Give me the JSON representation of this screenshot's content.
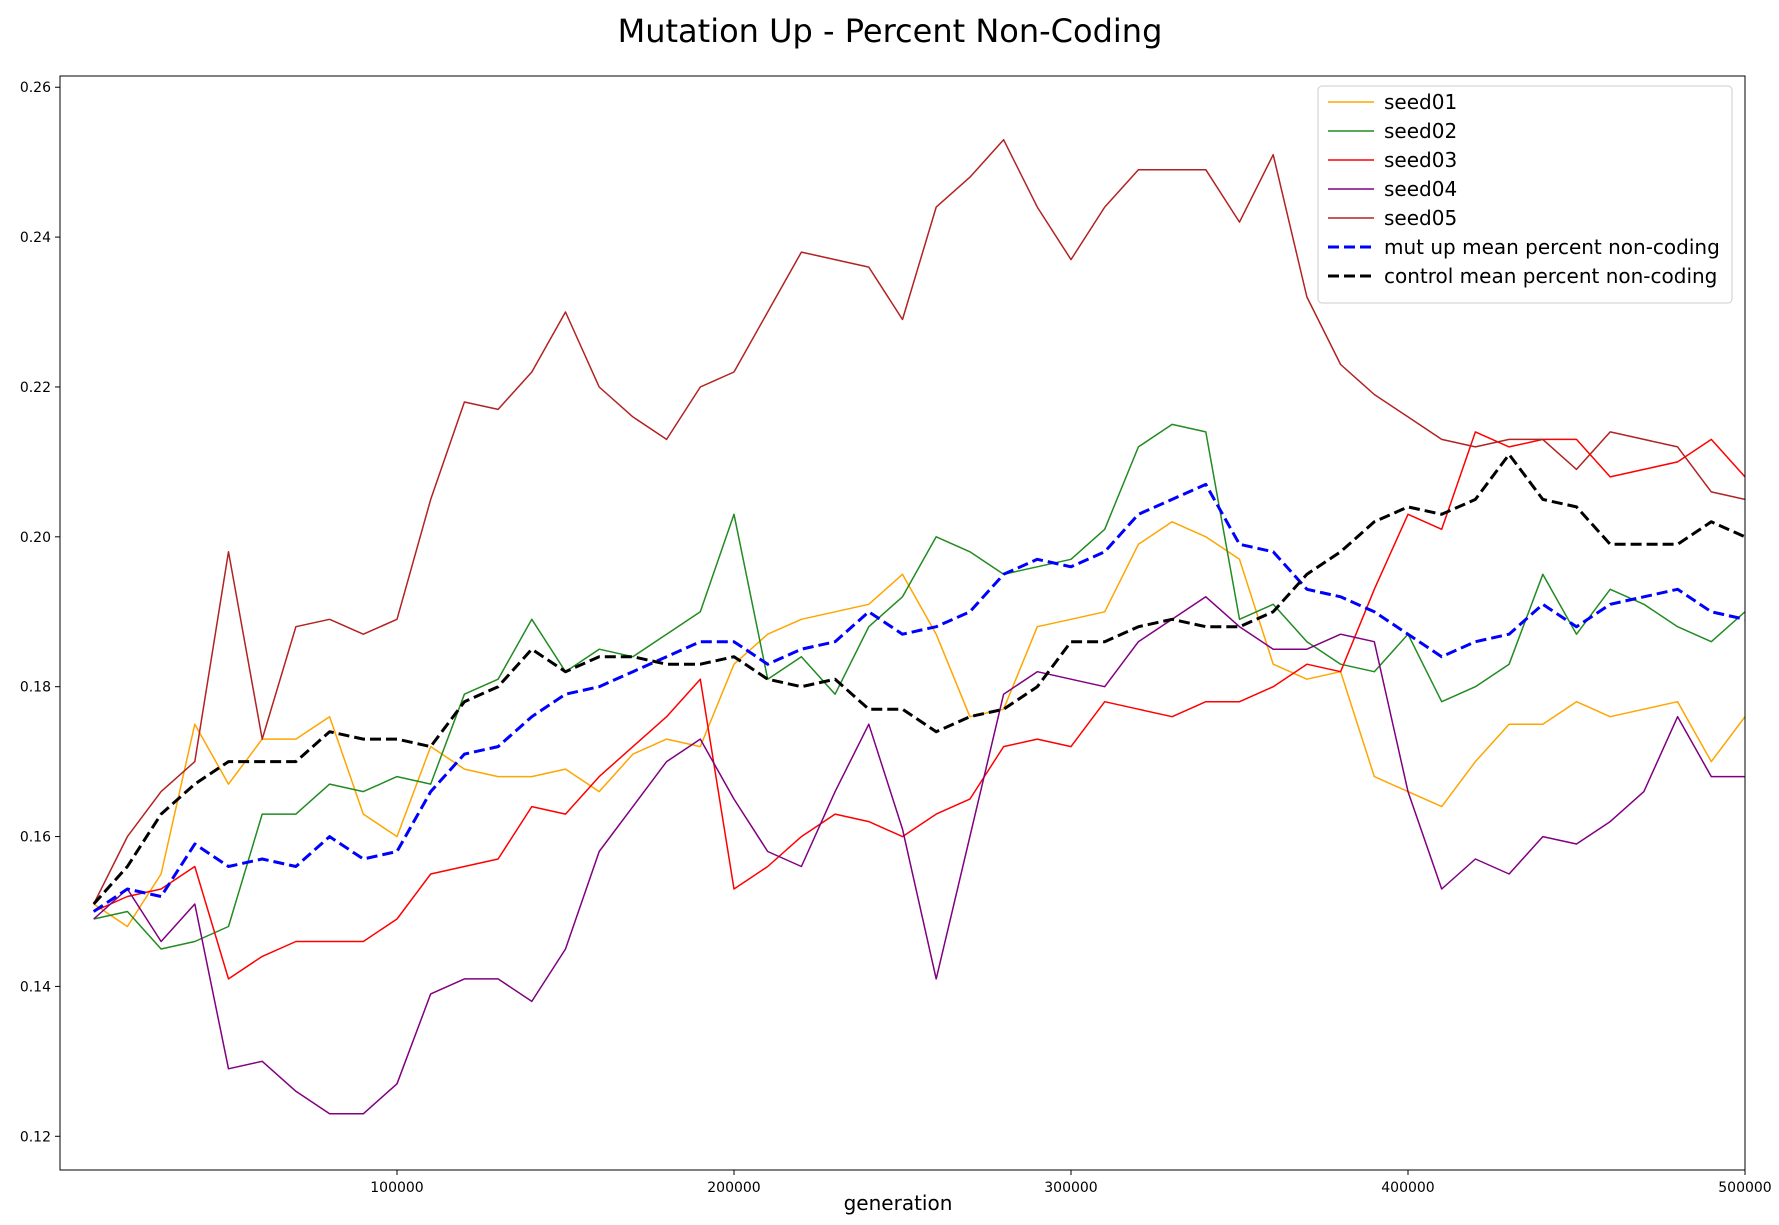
{
  "chart_data": {
    "type": "line",
    "title": "Mutation Up - Percent Non-Coding",
    "xlabel": "generation",
    "ylabel": "",
    "xlim": [
      0,
      500000
    ],
    "ylim": [
      0.1155,
      0.2615
    ],
    "xticks": [
      100000,
      200000,
      300000,
      400000,
      500000
    ],
    "xtick_labels": [
      "100000",
      "200000",
      "300000",
      "400000",
      "500000"
    ],
    "yticks": [
      0.12,
      0.14,
      0.16,
      0.18,
      0.2,
      0.22,
      0.24,
      0.26
    ],
    "ytick_labels": [
      "0.12",
      "0.14",
      "0.16",
      "0.18",
      "0.20",
      "0.22",
      "0.24",
      "0.26"
    ],
    "grid": false,
    "legend_position": "top-right",
    "x": [
      10000,
      20000,
      30000,
      40000,
      50000,
      60000,
      70000,
      80000,
      90000,
      100000,
      110000,
      120000,
      130000,
      140000,
      150000,
      160000,
      170000,
      180000,
      190000,
      200000,
      210000,
      220000,
      230000,
      240000,
      250000,
      260000,
      270000,
      280000,
      290000,
      300000,
      310000,
      320000,
      330000,
      340000,
      350000,
      360000,
      370000,
      380000,
      390000,
      400000,
      410000,
      420000,
      430000,
      440000,
      450000,
      460000,
      470000,
      480000,
      490000,
      500000
    ],
    "series": [
      {
        "name": "seed01",
        "color": "#ffa500",
        "dashed": false,
        "width": 1.5,
        "values": [
          0.151,
          0.148,
          0.155,
          0.175,
          0.167,
          0.173,
          0.173,
          0.176,
          0.163,
          0.16,
          0.172,
          0.169,
          0.168,
          0.168,
          0.169,
          0.166,
          0.171,
          0.173,
          0.172,
          0.183,
          0.187,
          0.189,
          0.19,
          0.191,
          0.195,
          0.187,
          0.176,
          0.177,
          0.188,
          0.189,
          0.19,
          0.199,
          0.202,
          0.2,
          0.197,
          0.183,
          0.181,
          0.182,
          0.168,
          0.166,
          0.164,
          0.17,
          0.175,
          0.175,
          0.178,
          0.176,
          0.177,
          0.178,
          0.17,
          0.176
        ]
      },
      {
        "name": "seed02",
        "color": "#228b22",
        "dashed": false,
        "width": 1.5,
        "values": [
          0.149,
          0.15,
          0.145,
          0.146,
          0.148,
          0.163,
          0.163,
          0.167,
          0.166,
          0.168,
          0.167,
          0.179,
          0.181,
          0.189,
          0.182,
          0.185,
          0.184,
          0.187,
          0.19,
          0.203,
          0.181,
          0.184,
          0.179,
          0.188,
          0.192,
          0.2,
          0.198,
          0.195,
          0.196,
          0.197,
          0.201,
          0.212,
          0.215,
          0.214,
          0.189,
          0.191,
          0.186,
          0.183,
          0.182,
          0.187,
          0.178,
          0.18,
          0.183,
          0.195,
          0.187,
          0.193,
          0.191,
          0.188,
          0.186,
          0.19
        ]
      },
      {
        "name": "seed03",
        "color": "#ff0000",
        "dashed": false,
        "width": 1.5,
        "values": [
          0.15,
          0.152,
          0.153,
          0.156,
          0.141,
          0.144,
          0.146,
          0.146,
          0.146,
          0.149,
          0.155,
          0.156,
          0.157,
          0.164,
          0.163,
          0.168,
          0.172,
          0.176,
          0.181,
          0.153,
          0.156,
          0.16,
          0.163,
          0.162,
          0.16,
          0.163,
          0.165,
          0.172,
          0.173,
          0.172,
          0.178,
          0.177,
          0.176,
          0.178,
          0.178,
          0.18,
          0.183,
          0.182,
          0.193,
          0.203,
          0.201,
          0.214,
          0.212,
          0.213,
          0.213,
          0.208,
          0.209,
          0.21,
          0.213,
          0.208
        ]
      },
      {
        "name": "seed04",
        "color": "#800080",
        "dashed": false,
        "width": 1.5,
        "values": [
          0.149,
          0.153,
          0.146,
          0.151,
          0.129,
          0.13,
          0.126,
          0.123,
          0.123,
          0.127,
          0.139,
          0.141,
          0.141,
          0.138,
          0.145,
          0.158,
          0.164,
          0.17,
          0.173,
          0.165,
          0.158,
          0.156,
          0.166,
          0.175,
          0.161,
          0.141,
          0.16,
          0.179,
          0.182,
          0.181,
          0.18,
          0.186,
          0.189,
          0.192,
          0.188,
          0.185,
          0.185,
          0.187,
          0.186,
          0.166,
          0.153,
          0.157,
          0.155,
          0.16,
          0.159,
          0.162,
          0.166,
          0.176,
          0.168,
          0.168
        ]
      },
      {
        "name": "seed05",
        "color": "#b22222",
        "dashed": false,
        "width": 1.5,
        "values": [
          0.151,
          0.16,
          0.166,
          0.17,
          0.198,
          0.173,
          0.188,
          0.189,
          0.187,
          0.189,
          0.205,
          0.218,
          0.217,
          0.222,
          0.23,
          0.22,
          0.216,
          0.213,
          0.22,
          0.222,
          0.23,
          0.238,
          0.237,
          0.236,
          0.229,
          0.244,
          0.248,
          0.253,
          0.244,
          0.237,
          0.244,
          0.249,
          0.249,
          0.249,
          0.242,
          0.251,
          0.232,
          0.223,
          0.219,
          0.216,
          0.213,
          0.212,
          0.213,
          0.213,
          0.209,
          0.214,
          0.213,
          0.212,
          0.206,
          0.205
        ]
      },
      {
        "name": "mut up mean percent non-coding",
        "color": "#0000ff",
        "dashed": true,
        "width": 3,
        "values": [
          0.15,
          0.153,
          0.152,
          0.159,
          0.156,
          0.157,
          0.156,
          0.16,
          0.157,
          0.158,
          0.166,
          0.171,
          0.172,
          0.176,
          0.179,
          0.18,
          0.182,
          0.184,
          0.186,
          0.186,
          0.183,
          0.185,
          0.186,
          0.19,
          0.187,
          0.188,
          0.19,
          0.195,
          0.197,
          0.196,
          0.198,
          0.203,
          0.205,
          0.207,
          0.199,
          0.198,
          0.193,
          0.192,
          0.19,
          0.187,
          0.184,
          0.186,
          0.187,
          0.191,
          0.188,
          0.191,
          0.192,
          0.193,
          0.19,
          0.189
        ]
      },
      {
        "name": "control mean percent non-coding",
        "color": "#000000",
        "dashed": true,
        "width": 3,
        "values": [
          0.151,
          0.156,
          0.163,
          0.167,
          0.17,
          0.17,
          0.17,
          0.174,
          0.173,
          0.173,
          0.172,
          0.178,
          0.18,
          0.185,
          0.182,
          0.184,
          0.184,
          0.183,
          0.183,
          0.184,
          0.181,
          0.18,
          0.181,
          0.177,
          0.177,
          0.174,
          0.176,
          0.177,
          0.18,
          0.186,
          0.186,
          0.188,
          0.189,
          0.188,
          0.188,
          0.19,
          0.195,
          0.198,
          0.202,
          0.204,
          0.203,
          0.205,
          0.211,
          0.205,
          0.204,
          0.199,
          0.199,
          0.199,
          0.202,
          0.2
        ]
      }
    ]
  }
}
